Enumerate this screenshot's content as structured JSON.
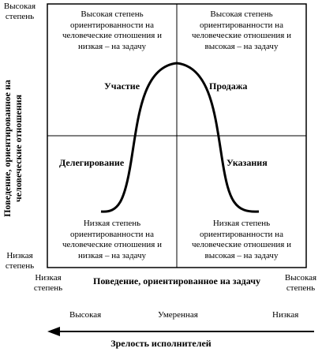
{
  "y_axis": {
    "top_label_line1": "Высокая",
    "top_label_line2": "степень",
    "bottom_label_line1": "Низкая",
    "bottom_label_line2": "степень",
    "title_line1": "Поведение, ориентированное на",
    "title_line2": "человеческие отношения"
  },
  "x_axis": {
    "left_label_line1": "Низкая",
    "left_label_line2": "степень",
    "right_label_line1": "Высокая",
    "right_label_line2": "степень",
    "title": "Поведение, ориентированное на задачу"
  },
  "quadrants": {
    "top_left": [
      "Высокая степень",
      "ориентированности на",
      "человеческие отношения и",
      "низкая – на задачу"
    ],
    "top_right": [
      "Высокая степень",
      "ориентированности на",
      "человеческие отношения и",
      "высокая – на задачу"
    ],
    "bottom_left": [
      "Низкая степень",
      "ориентированности на",
      "человеческие отношения и",
      "низкая – на задачу"
    ],
    "bottom_right": [
      "Низкая степень",
      "ориентированности на",
      "человеческие отношения и",
      "высокая – на задачу"
    ]
  },
  "styles": {
    "participation": "Участие",
    "selling": "Продажа",
    "delegating": "Делегирование",
    "telling": "Указания"
  },
  "maturity": {
    "high": "Высокая",
    "moderate": "Умеренная",
    "low": "Низкая",
    "title": "Зрелость исполнителей"
  }
}
